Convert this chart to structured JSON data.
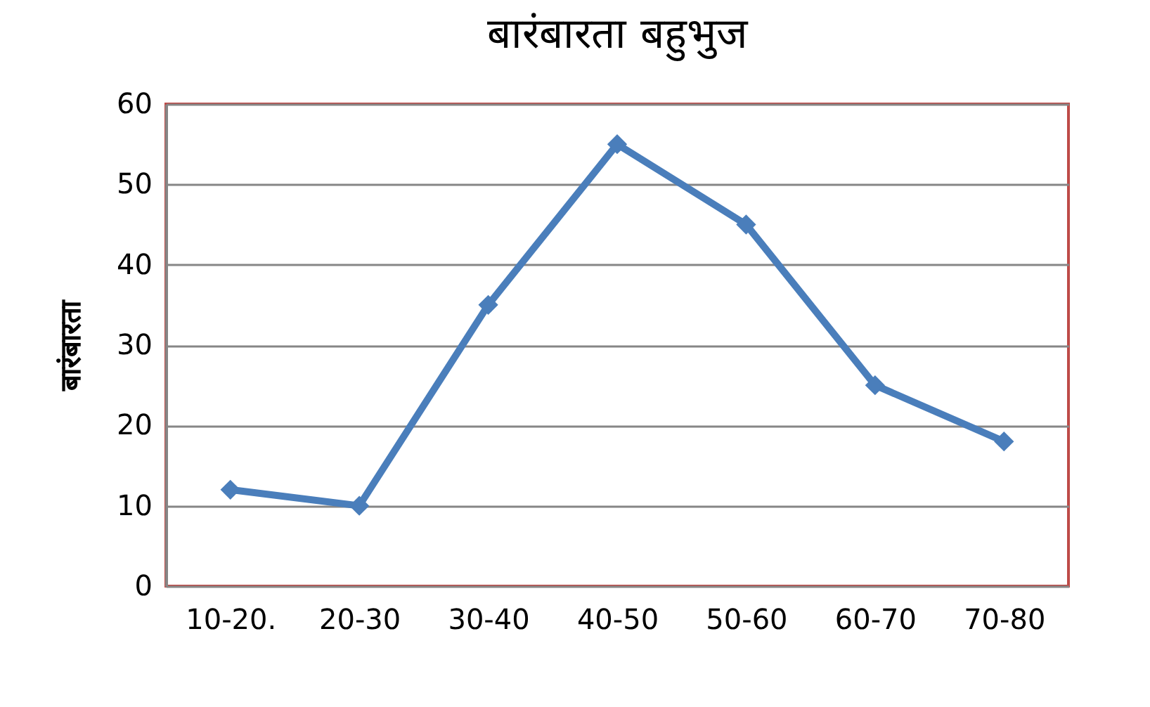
{
  "chart_data": {
    "type": "line",
    "title": "बारंबारता बहुभुज",
    "ylabel": "बारंबारता",
    "categories": [
      "10-20.",
      "20-30",
      "30-40",
      "40-50",
      "50-60",
      "60-70",
      "70-80"
    ],
    "series": [
      {
        "color": "#4a7ebb",
        "values": [
          12,
          10,
          35,
          55,
          45,
          25,
          18
        ]
      }
    ],
    "ylim": [
      0,
      60
    ],
    "yticks": [
      0,
      10,
      20,
      30,
      40,
      50,
      60
    ],
    "grid": "y",
    "marker": "diamond",
    "line_style": "solid"
  }
}
